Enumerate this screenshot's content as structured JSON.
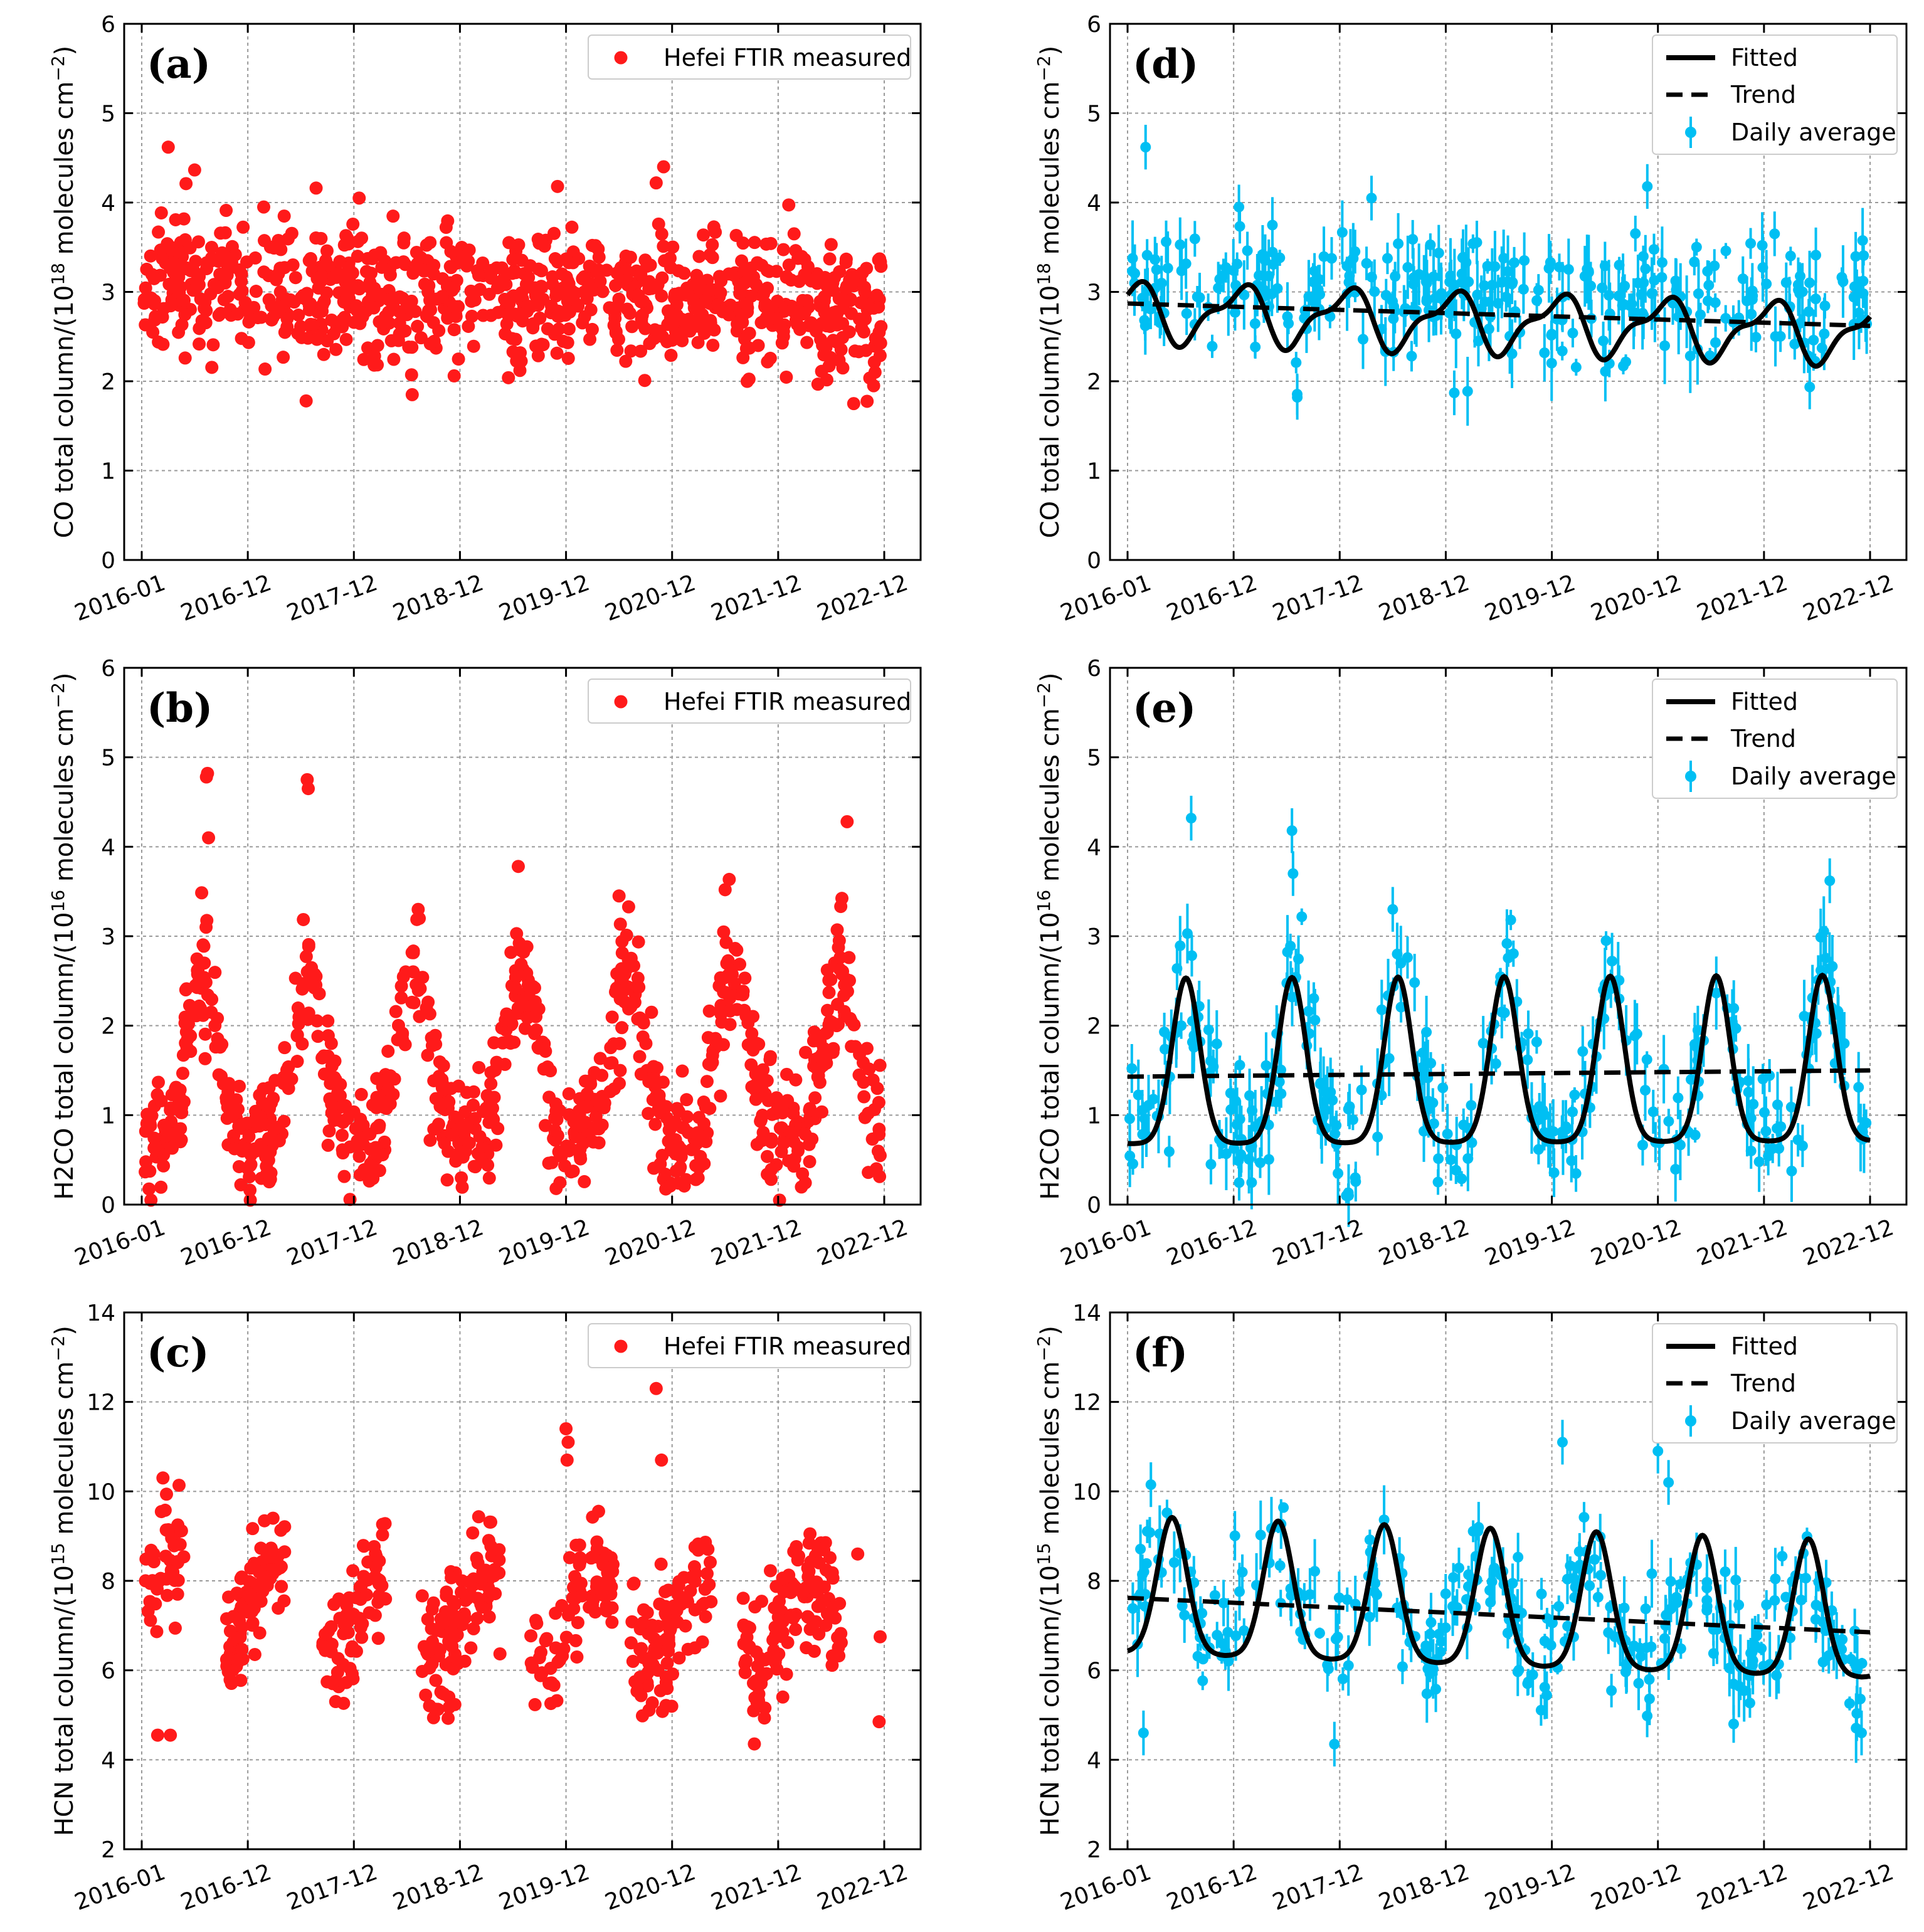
{
  "colors": {
    "measured": "#ff1a1a",
    "daily": "#00bff3",
    "fit": "#000000"
  },
  "chart_data": [
    {
      "panel": "(a)",
      "type": "scatter",
      "variant": "measured",
      "ylabel_main": "CO total column/(10",
      "ylabel_exp": "18",
      "ylabel_tail": " molecules cm",
      "ylabel_unit_exp": "−2",
      "ylabel_close": ")",
      "ylim": [
        0,
        6
      ],
      "yticks": [
        "0",
        "1",
        "2",
        "3",
        "4",
        "5",
        "6"
      ],
      "xticks": [
        "2016-01",
        "2016-12",
        "2017-12",
        "2018-12",
        "2019-12",
        "2020-12",
        "2021-12",
        "2022-12"
      ],
      "legend": [
        "Hefei FTIR measured"
      ],
      "gen": {
        "base": 2.8,
        "amp": 0.35,
        "peak": 0.05,
        "width": 0.5,
        "slope": -0.04,
        "noise": 0.38,
        "seed": 11,
        "min": 1.75,
        "max": 4.65
      },
      "extremes": [
        {
          "x": 0.25,
          "y": 4.62
        },
        {
          "x": 4.92,
          "y": 4.4
        },
        {
          "x": 4.85,
          "y": 4.22
        },
        {
          "x": 3.92,
          "y": 4.18
        },
        {
          "x": 2.05,
          "y": 4.05
        },
        {
          "x": 1.15,
          "y": 3.95
        },
        {
          "x": 6.15,
          "y": 3.65
        },
        {
          "x": 1.55,
          "y": 1.78
        },
        {
          "x": 2.55,
          "y": 1.85
        },
        {
          "x": 6.9,
          "y": 1.95
        }
      ],
      "gaps": []
    },
    {
      "panel": "(b)",
      "type": "scatter",
      "variant": "measured",
      "ylabel_main": "H2CO total column/(10",
      "ylabel_exp": "16",
      "ylabel_tail": " molecules cm",
      "ylabel_unit_exp": "−2",
      "ylabel_close": ")",
      "ylim": [
        0,
        6
      ],
      "yticks": [
        "0",
        "1",
        "2",
        "3",
        "4",
        "5",
        "6"
      ],
      "xticks": [
        "2016-01",
        "2016-12",
        "2017-12",
        "2018-12",
        "2019-12",
        "2020-12",
        "2021-12",
        "2022-12"
      ],
      "legend": [
        "Hefei FTIR measured"
      ],
      "gen": {
        "base": 0.7,
        "amp": 1.85,
        "peak": 0.58,
        "width": 0.15,
        "slope": 0.005,
        "noise": 0.33,
        "seed": 23,
        "min": 0.05,
        "max": 4.8
      },
      "extremes": [
        {
          "x": 0.62,
          "y": 4.82
        },
        {
          "x": 0.61,
          "y": 4.78
        },
        {
          "x": 1.56,
          "y": 4.75
        },
        {
          "x": 1.57,
          "y": 4.65
        },
        {
          "x": 6.65,
          "y": 4.28
        },
        {
          "x": 0.63,
          "y": 4.1
        },
        {
          "x": 3.55,
          "y": 3.78
        },
        {
          "x": 4.5,
          "y": 3.45
        },
        {
          "x": 5.5,
          "y": 3.52
        }
      ],
      "gaps": []
    },
    {
      "panel": "(c)",
      "type": "scatter",
      "variant": "measured",
      "ylabel_main": "HCN total column/(10",
      "ylabel_exp": "15",
      "ylabel_tail": " molecules cm",
      "ylabel_unit_exp": "−2",
      "ylabel_close": ")",
      "ylim": [
        2,
        14
      ],
      "yticks": [
        "2",
        "4",
        "6",
        "8",
        "10",
        "12",
        "14"
      ],
      "xticks": [
        "2016-01",
        "2016-12",
        "2017-12",
        "2018-12",
        "2019-12",
        "2020-12",
        "2021-12",
        "2022-12"
      ],
      "legend": [
        "Hefei FTIR measured"
      ],
      "gen": {
        "base": 6.0,
        "amp": 2.6,
        "peak": 0.3,
        "width": 0.28,
        "slope": -0.1,
        "noise": 0.7,
        "seed": 37,
        "min": 4.1,
        "max": 12.4
      },
      "extremes": [
        {
          "x": 4.85,
          "y": 12.3
        },
        {
          "x": 4.0,
          "y": 11.4
        },
        {
          "x": 4.02,
          "y": 11.1
        },
        {
          "x": 4.01,
          "y": 10.7
        },
        {
          "x": 0.2,
          "y": 10.3
        },
        {
          "x": 4.9,
          "y": 10.7
        },
        {
          "x": 6.3,
          "y": 9.05
        },
        {
          "x": 6.75,
          "y": 8.6
        },
        {
          "x": 0.15,
          "y": 4.55
        },
        {
          "x": 0.27,
          "y": 4.55
        }
      ],
      "gaps": [
        [
          0.4,
          0.8
        ],
        [
          1.35,
          1.7
        ],
        [
          2.3,
          2.62
        ],
        [
          3.4,
          3.65
        ],
        [
          4.45,
          4.6
        ],
        [
          5.37,
          5.67
        ],
        [
          6.6,
          6.95
        ]
      ]
    },
    {
      "panel": "(d)",
      "type": "line",
      "variant": "fit",
      "ylabel_main": "CO total column/(10",
      "ylabel_exp": "18",
      "ylabel_tail": " molecules cm",
      "ylabel_unit_exp": "−2",
      "ylabel_close": ")",
      "ylim": [
        0,
        6
      ],
      "yticks": [
        "0",
        "1",
        "2",
        "3",
        "4",
        "5",
        "6"
      ],
      "xticks": [
        "2016-01",
        "2016-12",
        "2017-12",
        "2018-12",
        "2019-12",
        "2020-12",
        "2021-12",
        "2022-12"
      ],
      "legend": [
        "Fitted",
        "Trend",
        "Daily average"
      ],
      "trend": {
        "start": 2.87,
        "end": 2.62
      },
      "fit": {
        "base": 2.75,
        "amp": 0.6,
        "peak": 0.05,
        "width": 0.45,
        "slope": -0.035,
        "dipMin": 2.3
      },
      "gen": {
        "base": 2.8,
        "amp": 0.35,
        "peak": 0.05,
        "width": 0.5,
        "slope": -0.04,
        "noise": 0.35,
        "seed": 51,
        "min": 1.85,
        "max": 4.62
      },
      "extremes": [
        {
          "x": 0.17,
          "y": 4.62
        },
        {
          "x": 4.9,
          "y": 4.18
        },
        {
          "x": 2.3,
          "y": 4.05
        },
        {
          "x": 1.05,
          "y": 3.95
        },
        {
          "x": 6.1,
          "y": 3.65
        },
        {
          "x": 1.6,
          "y": 1.82
        },
        {
          "x": 3.08,
          "y": 1.87
        }
      ],
      "gaps": []
    },
    {
      "panel": "(e)",
      "type": "line",
      "variant": "fit",
      "ylabel_main": "H2CO total column/(10",
      "ylabel_exp": "16",
      "ylabel_tail": " molecules cm",
      "ylabel_unit_exp": "−2",
      "ylabel_close": ")",
      "ylim": [
        0,
        6
      ],
      "yticks": [
        "0",
        "1",
        "2",
        "3",
        "4",
        "5",
        "6"
      ],
      "xticks": [
        "2016-01",
        "2016-12",
        "2017-12",
        "2018-12",
        "2019-12",
        "2020-12",
        "2021-12",
        "2022-12"
      ],
      "legend": [
        "Fitted",
        "Trend",
        "Daily average"
      ],
      "trend": {
        "start": 1.43,
        "end": 1.5
      },
      "fit": {
        "base": 0.68,
        "amp": 1.85,
        "peak": 0.55,
        "width": 0.13,
        "slope": 0.005,
        "dipMin": 0.66
      },
      "gen": {
        "base": 0.7,
        "amp": 1.85,
        "peak": 0.58,
        "width": 0.15,
        "slope": 0.005,
        "noise": 0.3,
        "seed": 67,
        "min": 0.1,
        "max": 4.6
      },
      "extremes": [
        {
          "x": 0.6,
          "y": 4.32
        },
        {
          "x": 1.55,
          "y": 4.18
        },
        {
          "x": 6.62,
          "y": 3.62
        },
        {
          "x": 1.56,
          "y": 3.7
        },
        {
          "x": 2.5,
          "y": 3.3
        }
      ],
      "gaps": []
    },
    {
      "panel": "(f)",
      "type": "line",
      "variant": "fit",
      "ylabel_main": "HCN total column/(10",
      "ylabel_exp": "15",
      "ylabel_tail": " molecules cm",
      "ylabel_unit_exp": "−2",
      "ylabel_close": ")",
      "ylim": [
        2,
        14
      ],
      "yticks": [
        "2",
        "4",
        "6",
        "8",
        "10",
        "12",
        "14"
      ],
      "xticks": [
        "2016-01",
        "2016-12",
        "2017-12",
        "2018-12",
        "2019-12",
        "2020-12",
        "2021-12",
        "2022-12"
      ],
      "legend": [
        "Fitted",
        "Trend",
        "Daily average"
      ],
      "trend": {
        "start": 7.62,
        "end": 6.85
      },
      "fit": {
        "base": 6.4,
        "amp": 3.05,
        "peak": 0.42,
        "width": 0.14,
        "slope": -0.08,
        "dipMin": 5.85
      },
      "gen": {
        "base": 6.1,
        "amp": 2.6,
        "peak": 0.35,
        "width": 0.25,
        "slope": -0.1,
        "noise": 0.65,
        "seed": 83,
        "min": 4.2,
        "max": 11.2
      },
      "extremes": [
        {
          "x": 4.1,
          "y": 11.1
        },
        {
          "x": 5.0,
          "y": 10.9
        },
        {
          "x": 5.1,
          "y": 10.2
        },
        {
          "x": 0.22,
          "y": 10.15
        },
        {
          "x": 0.15,
          "y": 4.6
        },
        {
          "x": 6.92,
          "y": 4.6
        },
        {
          "x": 1.95,
          "y": 4.35
        }
      ],
      "gaps": []
    }
  ]
}
